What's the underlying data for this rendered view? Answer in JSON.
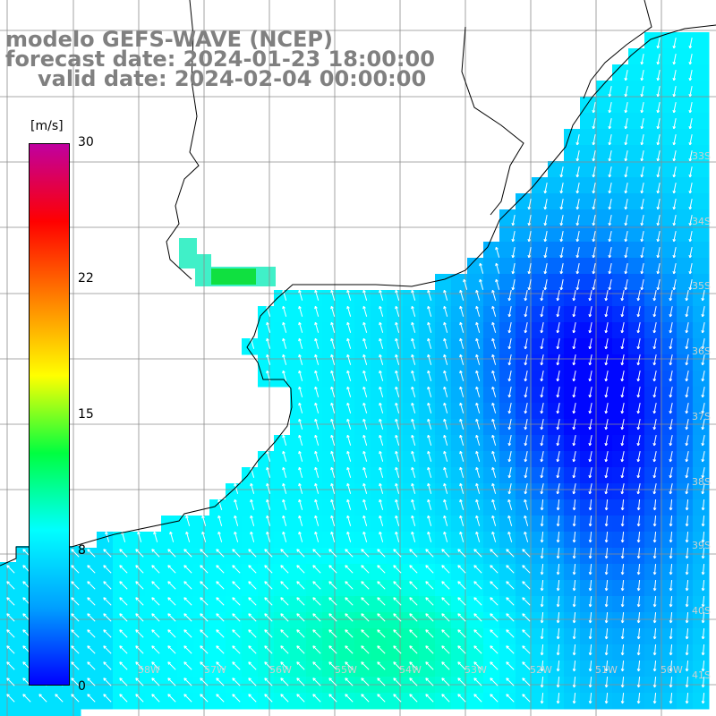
{
  "title": {
    "line1": "modelo GEFS-WAVE (NCEP)",
    "line2": "forecast date: 2024-01-23 18:00:00",
    "line3": "valid date: 2024-02-04 00:00:00"
  },
  "colorbar": {
    "unit": "[m/s]",
    "ticks": [
      {
        "label": "30",
        "value": 30
      },
      {
        "label": "22",
        "value": 22
      },
      {
        "label": "15",
        "value": 15
      },
      {
        "label": "8",
        "value": 8
      },
      {
        "label": "0",
        "value": 0
      }
    ],
    "colors": [
      "#0000ff",
      "#00a0ff",
      "#00ffff",
      "#00ff40",
      "#ffff00",
      "#ff8000",
      "#ff0000",
      "#c000a0"
    ]
  },
  "lat_labels": [
    "33S",
    "34S",
    "35S",
    "36S",
    "37S",
    "38S",
    "39S",
    "40S",
    "41S"
  ],
  "lon_labels": [
    "58W",
    "57W",
    "56W",
    "55W",
    "54W",
    "53W",
    "52W",
    "51W",
    "50W",
    "49W"
  ],
  "map_colors": {
    "land": "#ffffff",
    "coast": "#000000",
    "grid": "#8c8c8c",
    "arrows": "#ffffff"
  }
}
